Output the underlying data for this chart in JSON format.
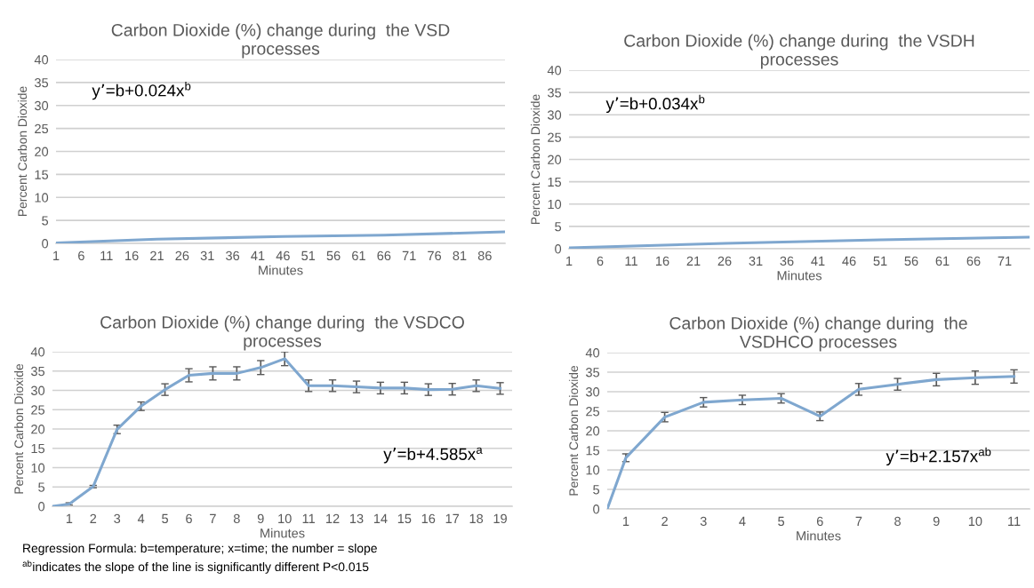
{
  "chart_data": [
    {
      "type": "line",
      "title": "Carbon Dioxide (%) change during  the VSD processes",
      "xlabel": "Minutes",
      "ylabel": "Percent Carbon Dioxide",
      "annotations": [
        "y’=b+0.024x$^{b}$"
      ],
      "x": [
        1,
        21,
        46,
        66,
        90
      ],
      "series": [
        {
          "color": "#7fa7cf",
          "values": [
            0.1,
            0.9,
            1.5,
            1.8,
            2.5
          ]
        }
      ],
      "xlim": [
        1,
        90
      ],
      "xticks": [
        1,
        6,
        11,
        16,
        21,
        26,
        31,
        36,
        41,
        46,
        51,
        56,
        61,
        66,
        71,
        76,
        81,
        86
      ],
      "ylim": [
        0,
        40
      ],
      "yticks": [
        0,
        5,
        10,
        15,
        20,
        25,
        30,
        35,
        40
      ],
      "grid": "y"
    },
    {
      "type": "line",
      "title": "Carbon Dioxide (%) change during  the VSDH processes",
      "xlabel": "Minutes",
      "ylabel": "Percent Carbon Dioxide",
      "annotations": [
        "y’=b+0.034x$^{b}$"
      ],
      "x": [
        1,
        26,
        51,
        75
      ],
      "series": [
        {
          "color": "#7fa7cf",
          "values": [
            0.2,
            1.2,
            2.0,
            2.6
          ]
        }
      ],
      "xlim": [
        1,
        75
      ],
      "xticks": [
        1,
        6,
        11,
        16,
        21,
        26,
        31,
        36,
        41,
        46,
        51,
        56,
        61,
        66,
        71
      ],
      "ylim": [
        0,
        40
      ],
      "yticks": [
        0,
        5,
        10,
        15,
        20,
        25,
        30,
        35,
        40
      ],
      "grid": "y"
    },
    {
      "type": "line",
      "title": "Carbon Dioxide (%) change during  the VSDCO processes",
      "xlabel": "Minutes",
      "ylabel": "Percent Carbon Dioxide",
      "annotations": [
        "y’=b+4.585x$^{a}$",
        "Regression Formula: b=temperature; x=time; the number = slope",
        "$^{ab}$indicates the slope of the line is significantly different P<0.015"
      ],
      "x": [
        0.3,
        1,
        2,
        3,
        4,
        5,
        6,
        7,
        8,
        9,
        10,
        11,
        12,
        13,
        14,
        15,
        16,
        17,
        18,
        19
      ],
      "series": [
        {
          "color": "#7fa7cf",
          "values": [
            0,
            0.6,
            5.1,
            19.9,
            25.9,
            30.2,
            33.9,
            34.4,
            34.4,
            35.9,
            38.2,
            31.2,
            31.2,
            30.9,
            30.6,
            30.6,
            30.2,
            30.3,
            31.2,
            30.5
          ],
          "errors": [
            null,
            0.3,
            0.3,
            1.1,
            1.1,
            1.5,
            1.7,
            1.7,
            1.7,
            1.8,
            1.8,
            1.5,
            1.5,
            1.5,
            1.5,
            1.5,
            1.5,
            1.5,
            1.5,
            1.5
          ]
        }
      ],
      "xlim": [
        0.3,
        19.5
      ],
      "xticks": [
        1,
        2,
        3,
        4,
        5,
        6,
        7,
        8,
        9,
        10,
        11,
        12,
        13,
        14,
        15,
        16,
        17,
        18,
        19
      ],
      "ylim": [
        0,
        40
      ],
      "yticks": [
        0,
        5,
        10,
        15,
        20,
        25,
        30,
        35,
        40
      ],
      "grid": "y"
    },
    {
      "type": "line",
      "title": "Carbon Dioxide (%) change during  the VSDHCO processes",
      "xlabel": "Minutes",
      "ylabel": "Percent Carbon Dioxide",
      "annotations": [
        "y’=b+2.157x$^{ab}$"
      ],
      "x": [
        0.52,
        1,
        2,
        3,
        4,
        5,
        6,
        7,
        8,
        9,
        10,
        11
      ],
      "series": [
        {
          "color": "#7fa7cf",
          "values": [
            0,
            13.1,
            23.5,
            27.3,
            27.9,
            28.3,
            23.7,
            30.6,
            31.9,
            33.1,
            33.6,
            33.9
          ],
          "errors": [
            null,
            1.0,
            1.2,
            1.2,
            1.2,
            1.2,
            1.1,
            1.5,
            1.5,
            1.6,
            1.7,
            1.7
          ]
        }
      ],
      "xlim": [
        0.52,
        11.4
      ],
      "xticks": [
        1,
        2,
        3,
        4,
        5,
        6,
        7,
        8,
        9,
        10,
        11
      ],
      "ylim": [
        0,
        40
      ],
      "yticks": [
        0,
        5,
        10,
        15,
        20,
        25,
        30,
        35,
        40
      ],
      "grid": "y"
    }
  ]
}
